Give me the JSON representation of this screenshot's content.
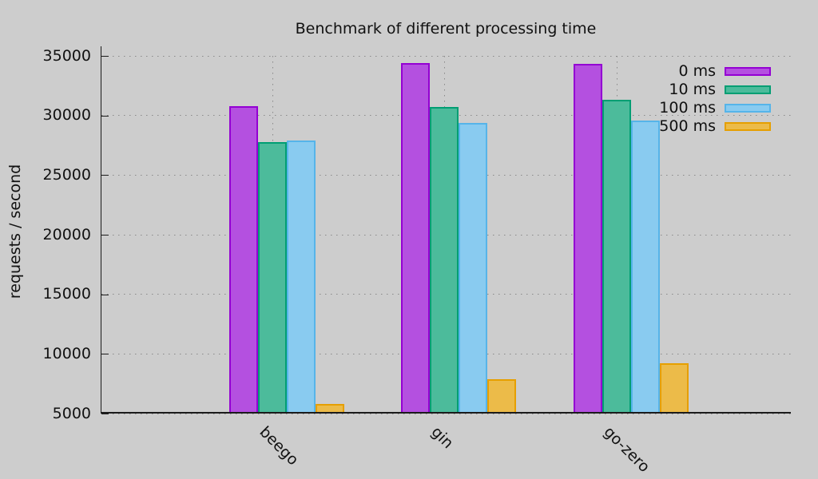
{
  "title": "Benchmark of different processing time",
  "ylabel": "requests / second",
  "background_color": "#cdcdcd",
  "chart_data": {
    "type": "bar",
    "title": "Benchmark of different processing time",
    "xlabel": "",
    "ylabel": "requests / second",
    "categories": [
      "beego",
      "gin",
      "go-zero"
    ],
    "series": [
      {
        "name": "0 ms",
        "fill": "#b450e0",
        "border": "#9400d3",
        "values": [
          30750,
          34400,
          34350
        ]
      },
      {
        "name": "10 ms",
        "fill": "#4cbb9b",
        "border": "#009e73",
        "values": [
          27800,
          30700,
          31300
        ]
      },
      {
        "name": "100 ms",
        "fill": "#89cbf0",
        "border": "#56b4e9",
        "values": [
          27900,
          29400,
          29600
        ]
      },
      {
        "name": "500 ms",
        "fill": "#ecbb49",
        "border": "#e69f00",
        "values": [
          5800,
          7900,
          9200
        ]
      }
    ],
    "ylim": [
      5000,
      35000
    ],
    "ytick_step": 5000,
    "ytick_labels": [
      "5000",
      "10000",
      "15000",
      "20000",
      "25000",
      "30000",
      "35000"
    ],
    "grid": true,
    "grid_style": "dotted",
    "legend_position": "top-right",
    "legend_entries": [
      "0 ms",
      "10 ms",
      "100 ms",
      "500 ms"
    ]
  }
}
